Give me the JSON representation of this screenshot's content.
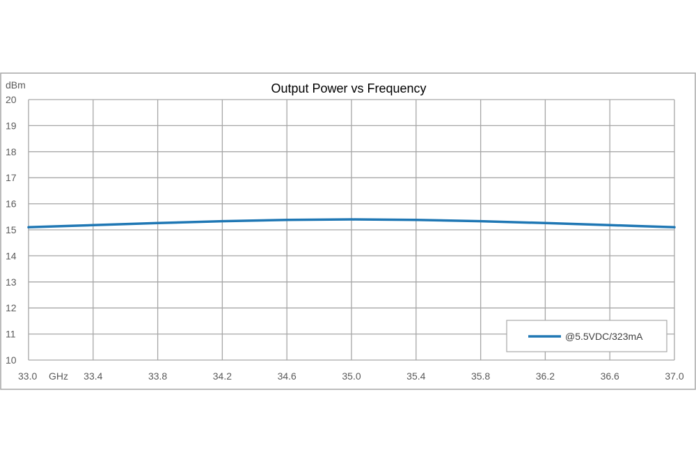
{
  "chart_data": {
    "type": "line",
    "title": "Output Power vs Frequency",
    "xlabel": "GHz",
    "ylabel": "dBm",
    "xlim": [
      33.0,
      37.0
    ],
    "ylim": [
      10,
      20
    ],
    "x_ticks": [
      "33.0",
      "33.4",
      "33.8",
      "34.2",
      "34.6",
      "35.0",
      "35.4",
      "35.8",
      "36.2",
      "36.6",
      "37.0"
    ],
    "y_ticks": [
      "10",
      "11",
      "12",
      "13",
      "14",
      "15",
      "16",
      "17",
      "18",
      "19",
      "20"
    ],
    "grid": true,
    "legend_position": "bottom-right",
    "series": [
      {
        "name": "@5.5VDC/323mA",
        "color": "#1f77b4",
        "x": [
          33.0,
          33.4,
          33.8,
          34.2,
          34.6,
          35.0,
          35.4,
          35.8,
          36.2,
          36.6,
          37.0
        ],
        "y": [
          15.1,
          15.18,
          15.26,
          15.33,
          15.38,
          15.4,
          15.38,
          15.33,
          15.26,
          15.18,
          15.1
        ]
      }
    ]
  }
}
